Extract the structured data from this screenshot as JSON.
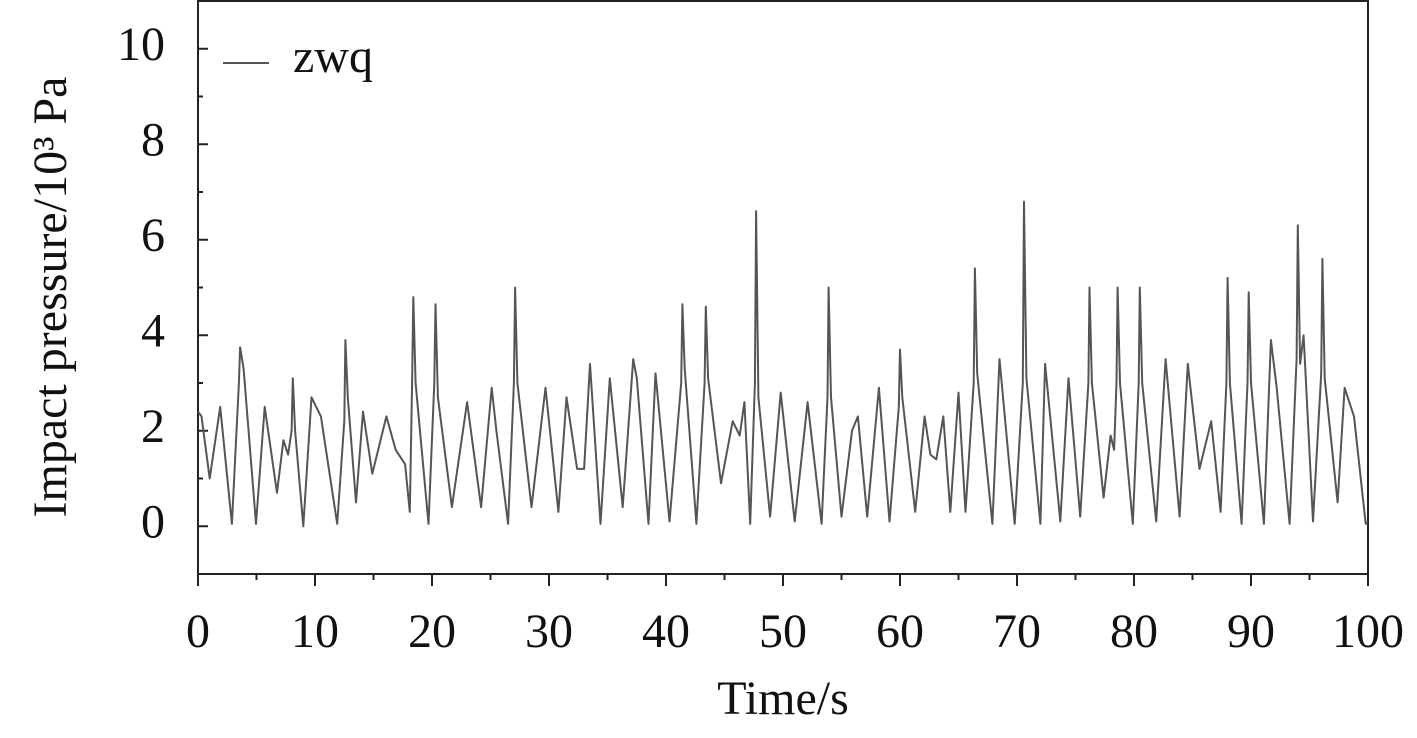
{
  "chart_data": {
    "type": "line",
    "x_label": "Time/s",
    "y_label": "Impact pressure/10³ Pa",
    "xlim": [
      0,
      100
    ],
    "xticks": [
      0,
      10,
      20,
      30,
      40,
      50,
      60,
      70,
      80,
      90,
      100
    ],
    "xminorticks": [
      5,
      15,
      25,
      35,
      45,
      55,
      65,
      75,
      85,
      95
    ],
    "ylim": [
      -1,
      11
    ],
    "yticks": [
      0,
      2,
      4,
      6,
      8,
      10
    ],
    "yminorticks": [
      -1,
      1,
      3,
      5,
      7,
      9
    ],
    "legend": "upper left",
    "series": [
      {
        "name": "zwq",
        "color": "#555555",
        "x": [
          0,
          0.3,
          1.0,
          1.9,
          2.9,
          3.5,
          3.6,
          3.9,
          4.96,
          5.7,
          6.75,
          7.3,
          7.7,
          8.0,
          8.1,
          8.3,
          9.0,
          9.7,
          10.5,
          11.9,
          12.5,
          12.6,
          12.8,
          13.5,
          14.1,
          14.9,
          16.1,
          16.9,
          17.7,
          18.1,
          18.3,
          18.4,
          18.6,
          19.7,
          20.2,
          20.3,
          20.5,
          21.7,
          23.0,
          24.2,
          25.1,
          25.5,
          26.5,
          27.0,
          27.1,
          27.3,
          28.5,
          29.7,
          30.8,
          31.5,
          32.4,
          33.0,
          33.5,
          34.4,
          35.2,
          36.3,
          37.2,
          37.5,
          38.5,
          39.1,
          40.3,
          41.3,
          41.4,
          41.6,
          42.6,
          43.3,
          43.4,
          43.6,
          44.7,
          45.7,
          46.3,
          46.7,
          47.2,
          47.6,
          47.7,
          47.9,
          48.9,
          49.8,
          51.0,
          52.1,
          53.3,
          53.8,
          53.9,
          54.1,
          55.0,
          55.9,
          56.4,
          57.2,
          58.2,
          59.1,
          59.9,
          60.0,
          60.2,
          61.3,
          62.1,
          62.6,
          63.1,
          63.7,
          64.3,
          65.0,
          65.6,
          66.3,
          66.4,
          66.6,
          67.9,
          68.5,
          69.8,
          70.5,
          70.6,
          70.8,
          72.0,
          72.4,
          73.7,
          74.4,
          75.4,
          76.1,
          76.2,
          76.4,
          77.4,
          78.0,
          78.3,
          78.5,
          78.6,
          78.8,
          79.9,
          80.4,
          80.5,
          80.7,
          81.9,
          82.7,
          83.9,
          84.6,
          85.6,
          86.6,
          87.4,
          87.9,
          88.0,
          88.2,
          89.2,
          89.7,
          89.8,
          90.0,
          91.1,
          91.7,
          92.2,
          93.3,
          93.9,
          94.0,
          94.2,
          94.5,
          95.3,
          96.0,
          96.1,
          96.3,
          97.4,
          98.0,
          98.8,
          99.8,
          100
        ],
        "values": [
          2.4,
          2.3,
          1.0,
          2.5,
          0.05,
          3.0,
          3.75,
          3.3,
          0.05,
          2.5,
          0.7,
          1.8,
          1.5,
          2.0,
          3.1,
          2.0,
          0.0,
          2.7,
          2.3,
          0.05,
          2.2,
          3.9,
          2.7,
          0.5,
          2.4,
          1.1,
          2.3,
          1.6,
          1.3,
          0.3,
          3.0,
          4.8,
          3.0,
          0.05,
          3.0,
          4.65,
          2.7,
          0.4,
          2.6,
          0.4,
          2.9,
          2.0,
          0.05,
          3.0,
          5.0,
          3.0,
          0.4,
          2.9,
          0.3,
          2.7,
          1.2,
          1.2,
          3.4,
          0.05,
          3.1,
          0.4,
          3.5,
          3.1,
          0.05,
          3.2,
          0.1,
          3.0,
          4.65,
          3.3,
          0.05,
          3.0,
          4.6,
          3.1,
          0.9,
          2.2,
          1.9,
          2.6,
          0.05,
          3.0,
          6.6,
          2.7,
          0.2,
          2.8,
          0.1,
          2.6,
          0.05,
          2.7,
          5.0,
          2.7,
          0.2,
          2.0,
          2.3,
          0.2,
          2.9,
          0.1,
          2.5,
          3.7,
          2.7,
          0.3,
          2.3,
          1.5,
          1.4,
          2.3,
          0.3,
          2.8,
          0.3,
          3.0,
          5.4,
          3.2,
          0.05,
          3.5,
          0.05,
          3.0,
          6.8,
          3.1,
          0.05,
          3.4,
          0.1,
          3.1,
          0.2,
          3.0,
          5.0,
          3.0,
          0.6,
          1.9,
          1.6,
          3.0,
          5.0,
          3.0,
          0.05,
          3.0,
          5.0,
          3.0,
          0.1,
          3.5,
          0.2,
          3.4,
          1.2,
          2.2,
          0.3,
          3.0,
          5.2,
          3.0,
          0.05,
          3.0,
          4.9,
          3.0,
          0.05,
          3.9,
          2.9,
          0.05,
          3.5,
          6.3,
          3.4,
          4.0,
          0.1,
          3.2,
          5.6,
          3.1,
          0.5,
          2.9,
          2.3,
          0.05,
          0.1
        ]
      }
    ]
  }
}
